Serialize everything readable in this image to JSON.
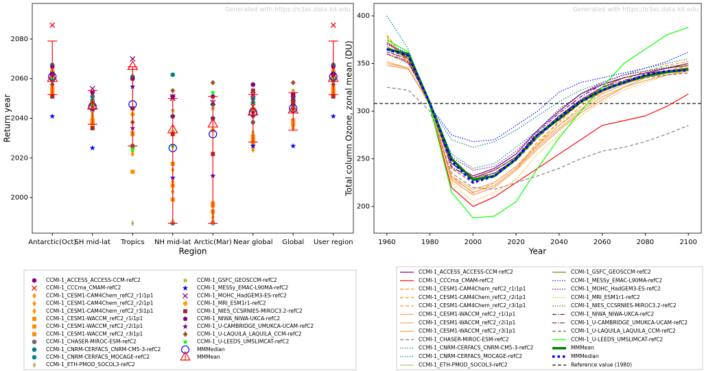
{
  "chart_data": [
    {
      "type": "scatter",
      "annotation": "Generated with https://o3as.data.kit.edu",
      "x_label": "Region",
      "y_label": "Return year",
      "categories": [
        "Antarctic(Oct)",
        "SH mid-lat",
        "Tropics",
        "NH mid-lat",
        "Arctic(Mar)",
        "Near global",
        "Global",
        "User region"
      ],
      "ylim": [
        1982,
        2098
      ],
      "yticks": [
        2000,
        2020,
        2040,
        2060,
        2080
      ],
      "series": [
        {
          "name": "CCMI-1_ACCESS_ACCESS-CCM-refC2",
          "color": "#800080",
          "marker": "circle",
          "values": [
            2062,
            2047,
            null,
            2041,
            2040,
            2057,
            2052,
            2062
          ]
        },
        {
          "name": "CCMI-1_CCCma_CMAM-refC2",
          "color": "#ff0000",
          "marker": "x",
          "values": [
            2087,
            2046,
            null,
            2051,
            2048,
            2046,
            2046,
            2087
          ]
        },
        {
          "name": "CCMI-1_CESM1-CAM4Chem_refC2_r1i1p1",
          "color": "#ff8c00",
          "marker": "thin-diamond",
          "values": [
            2057,
            2040,
            2025,
            2014,
            1990,
            2028,
            2037,
            2057
          ]
        },
        {
          "name": "CCMI-1_CESM1-CAM4Chem_refC2_r2i1p1",
          "color": "#ff8c00",
          "marker": "thin-diamond",
          "values": [
            2058,
            2041,
            2022,
            2003,
            1988,
            2025,
            2036,
            2058
          ]
        },
        {
          "name": "CCMI-1_CESM1-CAM4Chem_refC2_r3i1p1",
          "color": "#ff8c00",
          "marker": "thin-diamond",
          "values": [
            2056,
            2042,
            2024,
            2008,
            1992,
            2024,
            2035,
            2056
          ]
        },
        {
          "name": "CCMI-1_CESM1-WACCM_refC2_r1i1p1",
          "color": "#ff8c00",
          "marker": "square",
          "values": [
            2054,
            2038,
            2032,
            2017,
            1996,
            2029,
            2038,
            2054
          ]
        },
        {
          "name": "CCMI-1_CESM1-WACCM_refC2_r2i1p1",
          "color": "#ff8c00",
          "marker": "square",
          "values": [
            2055,
            2037,
            2013,
            1999,
            1993,
            2031,
            2039,
            2055
          ]
        },
        {
          "name": "CCMI-1_CESM1-WACCM_refC2_r3i1p1",
          "color": "#ff8c00",
          "marker": "square",
          "values": [
            2053,
            2039,
            2026,
            2006,
            1997,
            2027,
            2037,
            2053
          ]
        },
        {
          "name": "CCMI-1_CHASER-MIROC-ESM-refC2",
          "color": "#696969",
          "marker": "circle",
          "values": [
            2059,
            2044,
            2026,
            1987,
            1987,
            2038,
            2044,
            2059
          ]
        },
        {
          "name": "CCMI-1_CNRM-CERFACS_CNRM-CM5-3-refC2",
          "color": "#008080",
          "marker": "circle",
          "values": [
            2063,
            2049,
            2060,
            2062,
            2047,
            2050,
            2050,
            2063
          ]
        },
        {
          "name": "CCMI-1_CNRM-CERFACS_MOCAGE-refC2",
          "color": "#008b8b",
          "marker": "circle",
          "values": [
            2067,
            2051,
            2061,
            2041,
            2040,
            2048,
            2048,
            2067
          ]
        },
        {
          "name": "CCMI-1_ETH-PMOD_SOCOL3-refC2",
          "color": "#bdb76b",
          "marker": "thin-diamond",
          "values": [
            2058,
            2043,
            1987,
            1988,
            1987,
            2033,
            2038,
            2058
          ]
        },
        {
          "name": "CCMI-1_GSFC_GEOSCCM-refC2",
          "color": "#b5a642",
          "marker": "star",
          "values": [
            2060,
            2045,
            2033,
            2044,
            2045,
            2052,
            2054,
            2060
          ]
        },
        {
          "name": "CCMI-1_MESSy_EMAC-L90MA-refC2",
          "color": "#0000ff",
          "marker": "star",
          "values": [
            2041,
            2025,
            2056,
            2010,
            2011,
            2026,
            2026,
            2041
          ]
        },
        {
          "name": "CCMI-1_MOHC_HadGEM3-ES-refC2",
          "color": "#800080",
          "marker": "x",
          "values": [
            2061,
            2055,
            2070,
            2050,
            2048,
            2052,
            2050,
            2061
          ]
        },
        {
          "name": "CCMI-1_MRI_ESM1r1-refC2",
          "color": "#ffa500",
          "marker": "circle",
          "values": [
            2064,
            2048,
            2042,
            2033,
            2034,
            2043,
            2044,
            2064
          ]
        },
        {
          "name": "CCMI-1_NIES_CCSRNIES-MIROC3.2-refC2",
          "color": "#a52a2a",
          "marker": "square",
          "values": [
            2051,
            2035,
            2045,
            2032,
            2022,
            2054,
            2048,
            2051
          ]
        },
        {
          "name": "CCMI-1_NIWA_NIWA-UKCA-refC2",
          "color": "#800080",
          "marker": "pentagon",
          "values": [
            2066,
            2053,
            2060,
            2051,
            2051,
            2057,
            2052,
            2066
          ]
        },
        {
          "name": "CCMI-1_U-CAMBRIDGE_UMUKCA-UCAM-refC2",
          "color": "#800080",
          "marker": "star",
          "values": [
            2063,
            2048,
            2035,
            2041,
            2040,
            2043,
            2045,
            2063
          ]
        },
        {
          "name": "CCMI-1_U-LAQUILA_LAQUILA_CCM-refC2",
          "color": "#a0522d",
          "marker": "diamond",
          "values": [
            2057,
            2046,
            2038,
            2054,
            2058,
            2041,
            2058,
            2057
          ]
        },
        {
          "name": "CCMI-1_U-LEEDS_UMSLIMCAT-refC2",
          "color": "#00ff00",
          "marker": "star",
          "values": [
            2060,
            2047,
            2024,
            2026,
            2053,
            2045,
            2046,
            2060
          ]
        },
        {
          "name": "MMMedian",
          "color": "#0000ff",
          "marker": "open-circle",
          "values": [
            2061,
            2046,
            2047,
            2025,
            2032,
            2043,
            2045,
            2061
          ]
        },
        {
          "name": "MMMean",
          "color": "#ff0000",
          "marker": "open-triangle",
          "values": [
            2060,
            2046,
            2066,
            2034,
            2037,
            2043,
            2044,
            2060
          ],
          "lower": [
            2052,
            2037,
            2026,
            1987,
            1987,
            2028,
            2034,
            2052
          ],
          "upper": [
            2079,
            2054,
            2066,
            2050,
            2051,
            2052,
            2053,
            2079
          ]
        }
      ]
    },
    {
      "type": "line",
      "annotation": "Generated with https://o3as.data.kit.edu",
      "x_label": "Year",
      "y_label": "Total column Ozone, zonal mean (DU)",
      "x": [
        1960,
        1970,
        1980,
        1990,
        2000,
        2010,
        2020,
        2030,
        2040,
        2050,
        2060,
        2070,
        2080,
        2090,
        2100
      ],
      "xlim": [
        1954,
        2106
      ],
      "xticks": [
        1960,
        1980,
        2000,
        2020,
        2040,
        2060,
        2080,
        2100
      ],
      "ylim": [
        172,
        413
      ],
      "yticks": [
        200,
        250,
        300,
        350,
        400
      ],
      "series": [
        {
          "name": "CCMI-1_ACCESS_ACCESS-CCM-refC2",
          "color": "#800080",
          "linestyle": "solid",
          "values": [
            365,
            358,
            308,
            245,
            232,
            240,
            255,
            280,
            300,
            318,
            328,
            335,
            340,
            342,
            343
          ]
        },
        {
          "name": "CCMI-1_CCCma_CMAM-refC2",
          "color": "#ff0000",
          "linestyle": "solid",
          "values": [
            372,
            355,
            305,
            220,
            200,
            210,
            225,
            240,
            255,
            270,
            285,
            290,
            295,
            305,
            318
          ]
        },
        {
          "name": "CCMI-1_CESM1-CAM4Chem_refC2_r1i1p1",
          "color": "#ff8c00",
          "linestyle": "dashed",
          "values": [
            375,
            352,
            310,
            230,
            215,
            222,
            240,
            265,
            285,
            305,
            320,
            330,
            338,
            342,
            348
          ]
        },
        {
          "name": "CCMI-1_CESM1-CAM4Chem_refC2_r2i1p1",
          "color": "#ff8c00",
          "linestyle": "dashed",
          "values": [
            380,
            350,
            310,
            228,
            212,
            220,
            238,
            268,
            288,
            310,
            325,
            335,
            340,
            345,
            350
          ]
        },
        {
          "name": "CCMI-1_CESM1-CAM4Chem_refC2_r3i1p1",
          "color": "#ff8c00",
          "linestyle": "dashed",
          "values": [
            378,
            352,
            308,
            232,
            214,
            225,
            242,
            265,
            290,
            308,
            320,
            332,
            342,
            348,
            352
          ]
        },
        {
          "name": "CCMI-1_CESM1-WACCM_refC2_r1i1p1",
          "color": "#f4a460",
          "linestyle": "solid",
          "values": [
            350,
            345,
            308,
            230,
            215,
            222,
            240,
            262,
            282,
            300,
            315,
            325,
            335,
            340,
            345
          ]
        },
        {
          "name": "CCMI-1_CESM1-WACCM_refC2_r2i1p1",
          "color": "#f4a460",
          "linestyle": "solid",
          "values": [
            352,
            345,
            306,
            228,
            212,
            220,
            238,
            260,
            280,
            298,
            312,
            325,
            332,
            338,
            342
          ]
        },
        {
          "name": "CCMI-1_CESM1-WACCM_refC2_r3i1p1",
          "color": "#f4a460",
          "linestyle": "solid",
          "values": [
            348,
            344,
            307,
            232,
            218,
            225,
            242,
            264,
            285,
            302,
            318,
            328,
            336,
            342,
            346
          ]
        },
        {
          "name": "CCMI-1_CHASER-MIROC-ESM-refC2",
          "color": "#808080",
          "linestyle": "dashed",
          "values": [
            325,
            322,
            300,
            235,
            220,
            218,
            225,
            232,
            240,
            250,
            258,
            262,
            268,
            276,
            285
          ]
        },
        {
          "name": "CCMI-1_CNRM-CERFACS_CNRM-CM5-3-refC2",
          "color": "#008080",
          "linestyle": "dotted",
          "values": [
            400,
            365,
            305,
            270,
            262,
            268,
            280,
            295,
            310,
            322,
            330,
            338,
            345,
            350,
            355
          ]
        },
        {
          "name": "CCMI-1_CNRM-CERFACS_MOCAGE-refC2",
          "color": "#008b8b",
          "linestyle": "dotted",
          "values": [
            372,
            360,
            308,
            255,
            240,
            245,
            262,
            280,
            300,
            318,
            330,
            338,
            342,
            346,
            350
          ]
        },
        {
          "name": "CCMI-1_ETH-PMOD_SOCOL3-refC2",
          "color": "#bdb76b",
          "linestyle": "solid",
          "values": [
            360,
            350,
            310,
            240,
            230,
            235,
            250,
            272,
            295,
            312,
            325,
            330,
            335,
            340,
            342
          ]
        },
        {
          "name": "CCMI-1_GSFC_GEOSCCM-refC2",
          "color": "#808000",
          "linestyle": "solid",
          "values": [
            368,
            355,
            308,
            245,
            230,
            238,
            252,
            275,
            295,
            310,
            325,
            335,
            340,
            345,
            348
          ]
        },
        {
          "name": "CCMI-1_MESSy_EMAC-L90MA-refC2",
          "color": "#0000ff",
          "linestyle": "dotted",
          "values": [
            370,
            360,
            305,
            275,
            268,
            270,
            285,
            300,
            320,
            330,
            335,
            340,
            345,
            352,
            362
          ]
        },
        {
          "name": "CCMI-1_MOHC_HadGEM3-ES-refC2",
          "color": "#800080",
          "linestyle": "dotted",
          "values": [
            365,
            350,
            310,
            252,
            238,
            242,
            258,
            280,
            302,
            318,
            330,
            338,
            342,
            345,
            348
          ]
        },
        {
          "name": "CCMI-1_MRI_ESM1r1-refC2",
          "color": "#ffa500",
          "linestyle": "dotted",
          "values": [
            368,
            352,
            308,
            225,
            205,
            215,
            228,
            255,
            275,
            295,
            310,
            322,
            330,
            338,
            342
          ]
        },
        {
          "name": "CCMI-1_NIES_CCSRNIES-MIROC3.2-refC2",
          "color": "#a52a2a",
          "linestyle": "dotted",
          "values": [
            362,
            355,
            308,
            250,
            230,
            235,
            250,
            272,
            295,
            312,
            325,
            335,
            340,
            345,
            350
          ]
        },
        {
          "name": "CCMI-1_NIWA_NIWA-UKCA-refC2",
          "color": "#800080",
          "linestyle": "dashdot",
          "values": [
            366,
            358,
            310,
            245,
            230,
            238,
            252,
            278,
            298,
            315,
            328,
            335,
            340,
            345,
            350
          ]
        },
        {
          "name": "CCMI-1_U-CAMBRIDGE_UMUKCA-UCAM-refC2",
          "color": "#800080",
          "linestyle": "dashdot",
          "values": [
            360,
            352,
            308,
            242,
            228,
            235,
            250,
            275,
            295,
            312,
            325,
            332,
            338,
            342,
            345
          ]
        },
        {
          "name": "CCMI-1_U-LAQUILA_LAQUILA_CCM-refC2",
          "color": "#a0522d",
          "linestyle": "dashed",
          "values": [
            362,
            355,
            308,
            240,
            225,
            232,
            248,
            272,
            292,
            310,
            322,
            330,
            335,
            338,
            340
          ]
        },
        {
          "name": "CCMI-1_U-LEEDS_UMSLIMCAT-refC2",
          "color": "#00ff00",
          "linestyle": "solid",
          "values": [
            375,
            362,
            305,
            215,
            188,
            190,
            205,
            240,
            272,
            300,
            325,
            350,
            365,
            380,
            388
          ]
        },
        {
          "name": "MMMean",
          "color": "#008000",
          "linestyle": "thick",
          "values": [
            365,
            360,
            308,
            250,
            228,
            232,
            250,
            275,
            292,
            310,
            322,
            330,
            337,
            341,
            344
          ]
        },
        {
          "name": "MMMedian",
          "color": "#0000ff",
          "linestyle": "thick-dotted",
          "values": [
            365,
            358,
            308,
            248,
            225,
            232,
            250,
            275,
            293,
            310,
            322,
            330,
            338,
            342,
            343
          ]
        }
      ],
      "reference": {
        "name": "Reference value (1980)",
        "color": "#000000",
        "value": 308
      }
    }
  ]
}
